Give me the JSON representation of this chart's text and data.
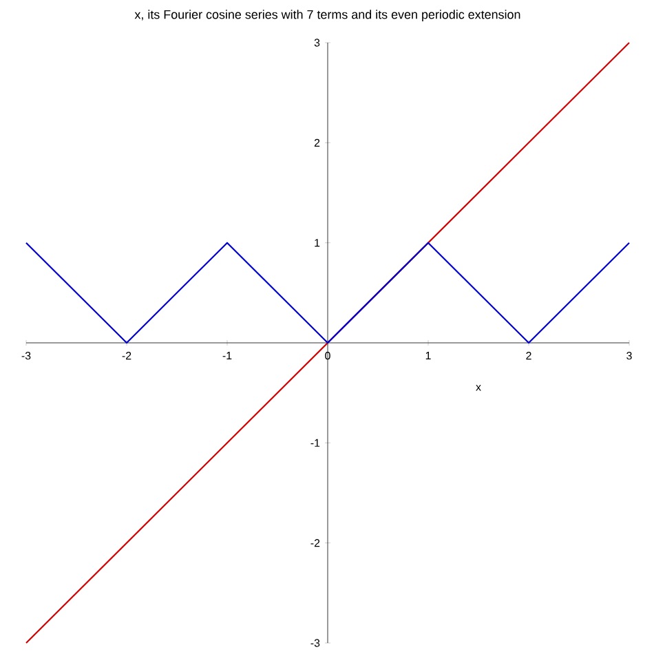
{
  "chart_data": {
    "type": "line",
    "title": "x, its Fourier cosine series with 7 terms and its even periodic extension",
    "xlabel": "x",
    "xlim": [
      -3,
      3
    ],
    "ylim": [
      -3,
      3
    ],
    "xticks": [
      -3,
      -2,
      -1,
      0,
      1,
      2,
      3
    ],
    "yticks": [
      -3,
      -2,
      -1,
      1,
      2,
      3
    ],
    "marker": "none",
    "line_style": "solid",
    "series": [
      {
        "color": "#d00000",
        "x": [
          -3,
          3
        ],
        "values": [
          -3,
          3
        ]
      },
      {
        "color": "#0000cc",
        "x": [
          -3,
          -2,
          -1,
          0,
          1,
          2,
          3
        ],
        "values": [
          1,
          0,
          1,
          0,
          1,
          0,
          1
        ]
      }
    ]
  }
}
